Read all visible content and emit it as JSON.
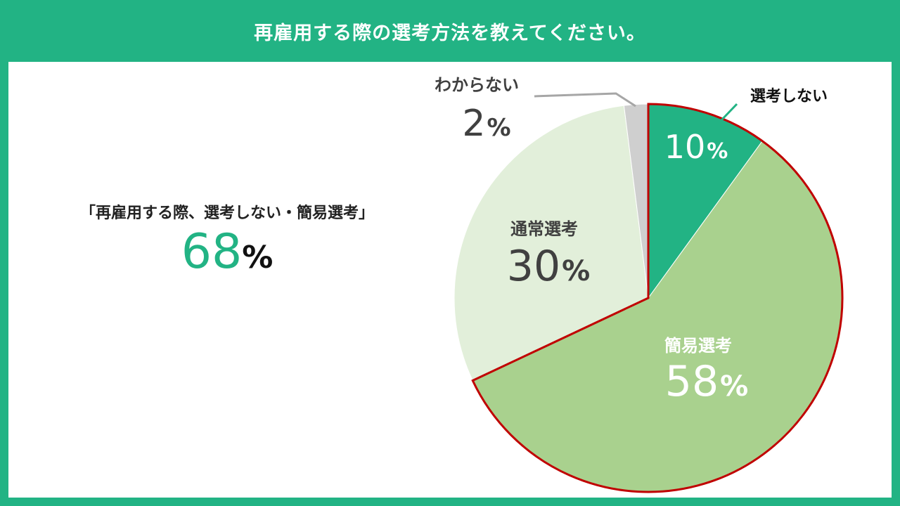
{
  "title": "再雇用する際の選考方法を教えてください。",
  "summary": {
    "label": "「再雇用する際、選考しない・簡易選考」",
    "value": "68",
    "unit": "%"
  },
  "colors": {
    "frame": "#22b384",
    "highlight_border": "#c00000"
  },
  "chart_data": {
    "type": "pie",
    "title": "再雇用する際の選考方法を教えてください。",
    "unit": "%",
    "slices": [
      {
        "label": "選考しない",
        "value": 10,
        "color": "#22b384",
        "text_color": "#ffffff",
        "highlight": true
      },
      {
        "label": "簡易選考",
        "value": 58,
        "color": "#a9d18e",
        "text_color": "#ffffff",
        "highlight": true
      },
      {
        "label": "通常選考",
        "value": 30,
        "color": "#e2efda",
        "text_color": "#404040",
        "highlight": false
      },
      {
        "label": "わからない",
        "value": 2,
        "color": "#cfcfcf",
        "text_color": "#404040",
        "highlight": false
      }
    ]
  }
}
